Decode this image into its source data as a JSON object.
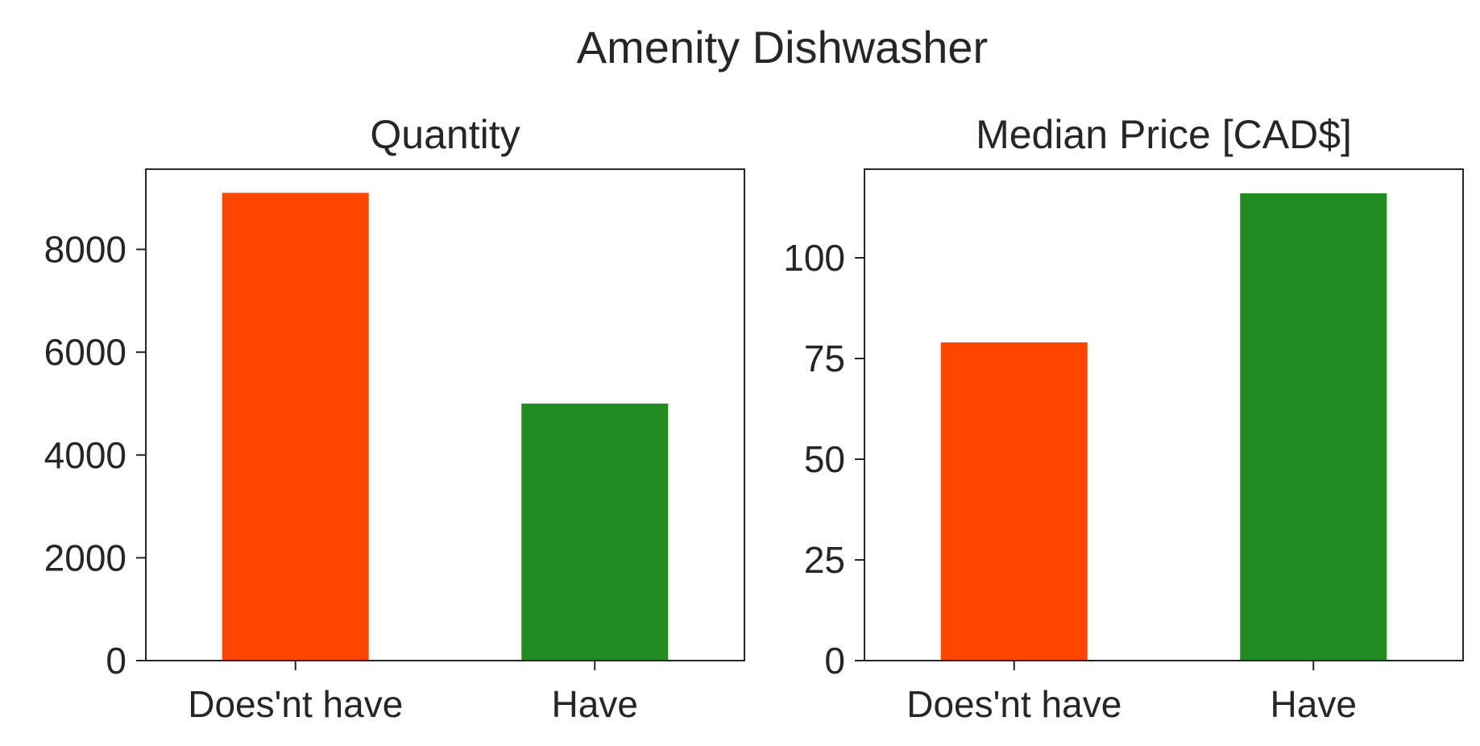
{
  "chart_data": {
    "type": "bar",
    "title": "Amenity Dishwasher",
    "colors": [
      "#ff4500",
      "#228b22"
    ],
    "grid": false,
    "subplots": [
      {
        "title": "Quantity",
        "categories": [
          "Does'nt have",
          "Have"
        ],
        "values": [
          9100,
          5000
        ],
        "ylim": [
          0,
          9560
        ],
        "yticks": [
          0,
          2000,
          4000,
          6000,
          8000
        ],
        "ytick_labels": [
          "0",
          "2000",
          "4000",
          "6000",
          "8000"
        ]
      },
      {
        "title": "Median Price [CAD$]",
        "categories": [
          "Does'nt have",
          "Have"
        ],
        "values": [
          79,
          116
        ],
        "ylim": [
          0,
          122
        ],
        "yticks": [
          0,
          25,
          50,
          75,
          100
        ],
        "ytick_labels": [
          "0",
          "25",
          "50",
          "75",
          "100"
        ]
      }
    ]
  }
}
